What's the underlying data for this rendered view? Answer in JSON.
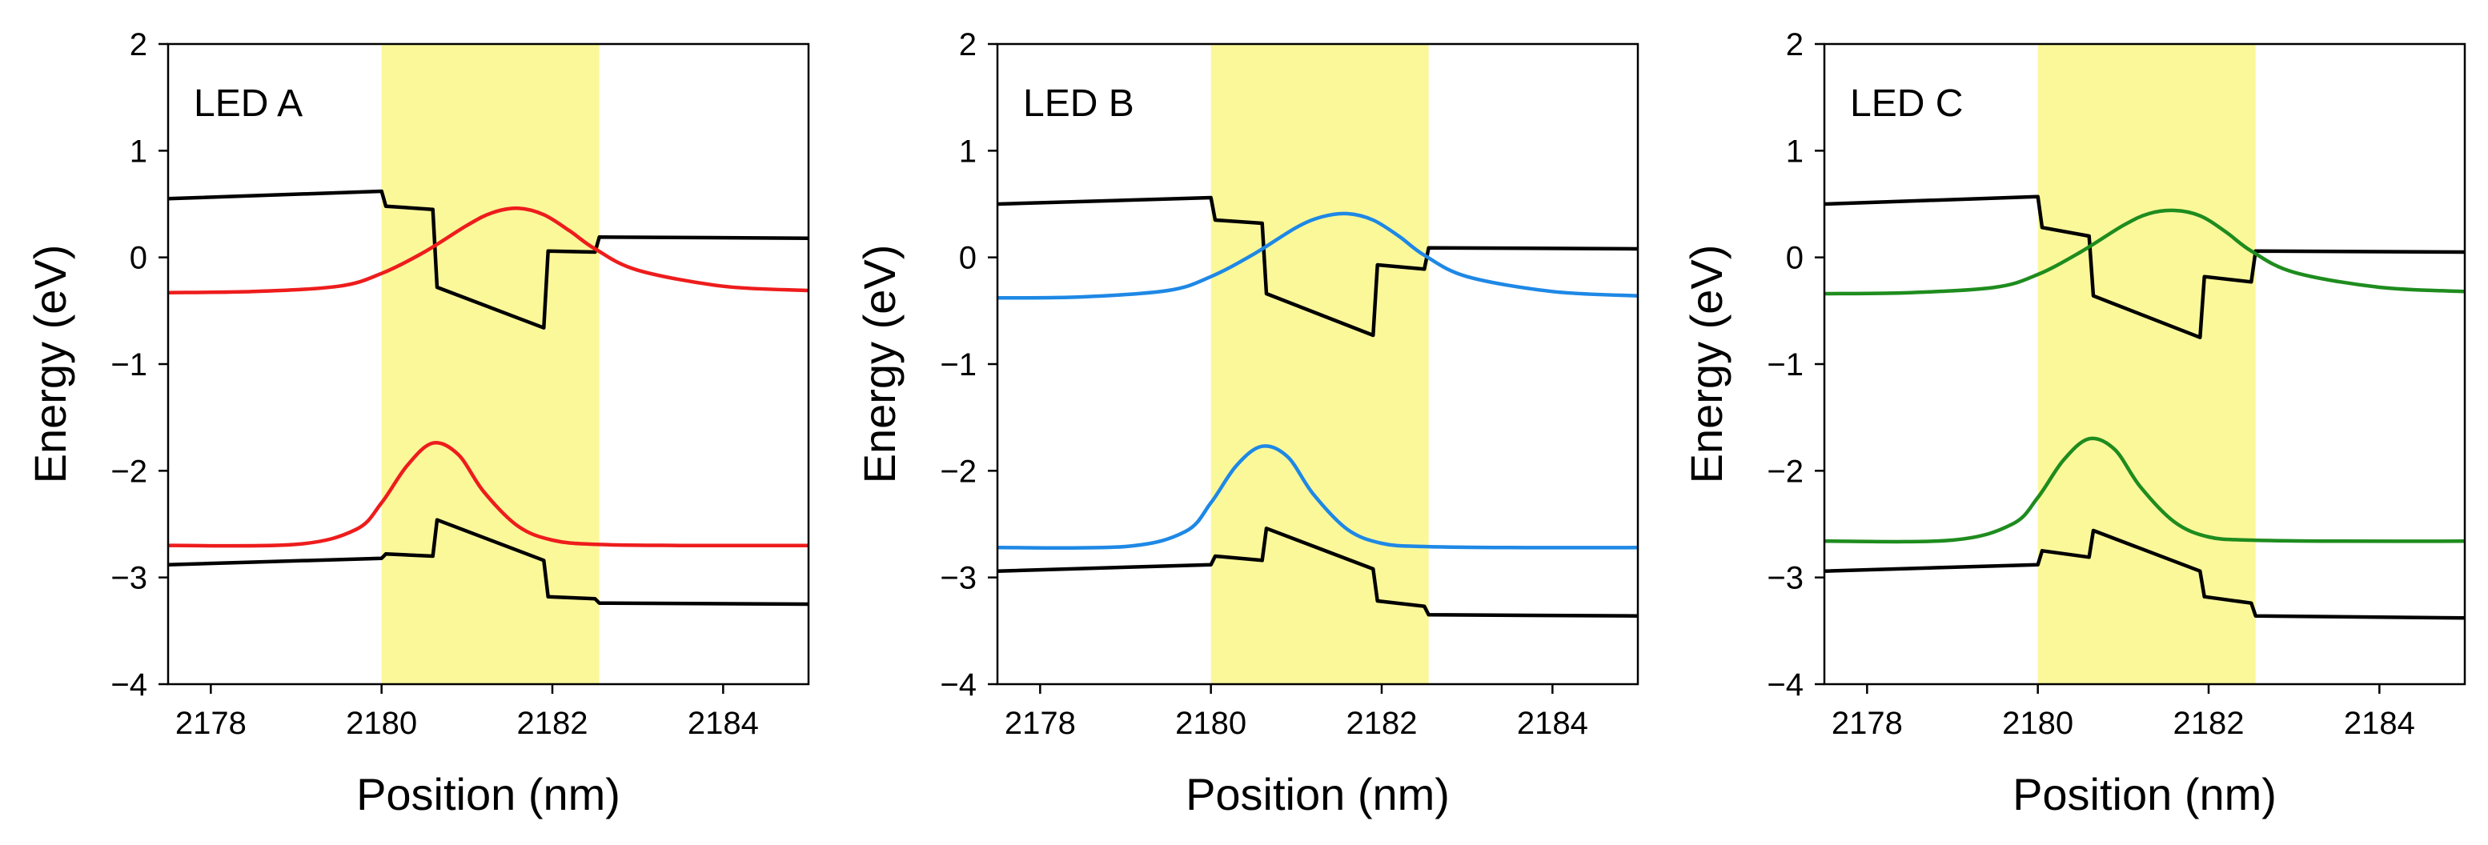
{
  "figure": {
    "colors": {
      "highlight": "#fbf89a",
      "band": "#000000",
      "frame": "#000000"
    }
  },
  "chart_data": [
    {
      "type": "line",
      "title": "LED A",
      "xlabel": "Position (nm)",
      "ylabel": "Energy (eV)",
      "xlim": [
        2177.5,
        2185
      ],
      "ylim": [
        -4,
        2
      ],
      "xticks": [
        2178,
        2180,
        2182,
        2184
      ],
      "yticks": [
        2,
        1,
        0,
        -1,
        -2,
        -3,
        -4
      ],
      "ytick_labels": [
        "2",
        "1",
        "0",
        "−1",
        "−2",
        "−3",
        "−4"
      ],
      "highlight_region": [
        2180,
        2182.55
      ],
      "wavefunction_color": "#ee1c1c",
      "series": [
        {
          "name": "conduction-band",
          "color": "#000000",
          "x": [
            2177.5,
            2180.0,
            2180.05,
            2180.6,
            2180.65,
            2181.9,
            2181.95,
            2182.5,
            2182.55,
            2185.0
          ],
          "y": [
            0.55,
            0.62,
            0.48,
            0.45,
            -0.28,
            -0.66,
            0.06,
            0.05,
            0.19,
            0.18
          ]
        },
        {
          "name": "valence-band",
          "color": "#000000",
          "x": [
            2177.5,
            2180.0,
            2180.05,
            2180.6,
            2180.65,
            2181.9,
            2181.95,
            2182.5,
            2182.55,
            2185.0
          ],
          "y": [
            -2.88,
            -2.82,
            -2.78,
            -2.8,
            -2.46,
            -2.84,
            -3.18,
            -3.2,
            -3.24,
            -3.25
          ]
        },
        {
          "name": "electron-wavefunction",
          "color": "#ee1c1c",
          "x": [
            2177.5,
            2178.5,
            2179.5,
            2180.0,
            2180.5,
            2181.0,
            2181.3,
            2181.6,
            2181.9,
            2182.2,
            2182.5,
            2183.0,
            2184.0,
            2185.0
          ],
          "y": [
            -0.33,
            -0.32,
            -0.27,
            -0.15,
            0.05,
            0.3,
            0.42,
            0.46,
            0.4,
            0.25,
            0.08,
            -0.12,
            -0.27,
            -0.31
          ]
        },
        {
          "name": "hole-wavefunction",
          "color": "#ee1c1c",
          "x": [
            2177.5,
            2179.0,
            2179.7,
            2180.0,
            2180.3,
            2180.6,
            2180.9,
            2181.2,
            2181.6,
            2182.0,
            2182.5,
            2183.5,
            2185.0
          ],
          "y": [
            -2.7,
            -2.69,
            -2.55,
            -2.3,
            -1.95,
            -1.74,
            -1.85,
            -2.2,
            -2.52,
            -2.65,
            -2.69,
            -2.7,
            -2.7
          ]
        }
      ]
    },
    {
      "type": "line",
      "title": "LED B",
      "xlabel": "Position (nm)",
      "ylabel": "Energy (eV)",
      "xlim": [
        2177.5,
        2185
      ],
      "ylim": [
        -4,
        2
      ],
      "xticks": [
        2178,
        2180,
        2182,
        2184
      ],
      "yticks": [
        2,
        1,
        0,
        -1,
        -2,
        -3,
        -4
      ],
      "ytick_labels": [
        "2",
        "1",
        "0",
        "−1",
        "−2",
        "−3",
        "−4"
      ],
      "highlight_region": [
        2180,
        2182.55
      ],
      "wavefunction_color": "#1e88e5",
      "series": [
        {
          "name": "conduction-band",
          "color": "#000000",
          "x": [
            2177.5,
            2180.0,
            2180.05,
            2180.6,
            2180.65,
            2181.9,
            2181.95,
            2182.5,
            2182.55,
            2185.0
          ],
          "y": [
            0.5,
            0.56,
            0.35,
            0.32,
            -0.34,
            -0.73,
            -0.07,
            -0.11,
            0.09,
            0.08
          ]
        },
        {
          "name": "valence-band",
          "color": "#000000",
          "x": [
            2177.5,
            2180.0,
            2180.05,
            2180.6,
            2180.65,
            2181.9,
            2181.95,
            2182.5,
            2182.55,
            2185.0
          ],
          "y": [
            -2.94,
            -2.88,
            -2.8,
            -2.84,
            -2.54,
            -2.92,
            -3.22,
            -3.27,
            -3.35,
            -3.36
          ]
        },
        {
          "name": "electron-wavefunction",
          "color": "#1e88e5",
          "x": [
            2177.5,
            2178.5,
            2179.5,
            2180.0,
            2180.5,
            2181.0,
            2181.3,
            2181.6,
            2181.9,
            2182.2,
            2182.5,
            2183.0,
            2184.0,
            2185.0
          ],
          "y": [
            -0.38,
            -0.37,
            -0.31,
            -0.18,
            0.03,
            0.28,
            0.38,
            0.41,
            0.35,
            0.2,
            0.02,
            -0.18,
            -0.32,
            -0.36
          ]
        },
        {
          "name": "hole-wavefunction",
          "color": "#1e88e5",
          "x": [
            2177.5,
            2179.0,
            2179.7,
            2180.0,
            2180.3,
            2180.6,
            2180.9,
            2181.2,
            2181.6,
            2182.0,
            2182.5,
            2183.5,
            2185.0
          ],
          "y": [
            -2.72,
            -2.71,
            -2.57,
            -2.3,
            -1.95,
            -1.77,
            -1.87,
            -2.22,
            -2.55,
            -2.68,
            -2.71,
            -2.72,
            -2.72
          ]
        }
      ]
    },
    {
      "type": "line",
      "title": "LED C",
      "xlabel": "Position (nm)",
      "ylabel": "Energy (eV)",
      "xlim": [
        2177.5,
        2185
      ],
      "ylim": [
        -4,
        2
      ],
      "xticks": [
        2178,
        2180,
        2182,
        2184
      ],
      "yticks": [
        2,
        1,
        0,
        -1,
        -2,
        -3,
        -4
      ],
      "ytick_labels": [
        "2",
        "1",
        "0",
        "−1",
        "−2",
        "−3",
        "−4"
      ],
      "highlight_region": [
        2180,
        2182.55
      ],
      "wavefunction_color": "#1e8c1e",
      "series": [
        {
          "name": "conduction-band",
          "color": "#000000",
          "x": [
            2177.5,
            2180.0,
            2180.05,
            2180.6,
            2180.65,
            2181.9,
            2181.95,
            2182.5,
            2182.55,
            2185.0
          ],
          "y": [
            0.5,
            0.57,
            0.28,
            0.2,
            -0.36,
            -0.75,
            -0.18,
            -0.23,
            0.06,
            0.05
          ]
        },
        {
          "name": "valence-band",
          "color": "#000000",
          "x": [
            2177.5,
            2180.0,
            2180.05,
            2180.6,
            2180.65,
            2181.9,
            2181.95,
            2182.5,
            2182.55,
            2185.0
          ],
          "y": [
            -2.94,
            -2.88,
            -2.75,
            -2.81,
            -2.56,
            -2.94,
            -3.18,
            -3.24,
            -3.36,
            -3.38
          ]
        },
        {
          "name": "electron-wavefunction",
          "color": "#1e8c1e",
          "x": [
            2177.5,
            2178.5,
            2179.5,
            2180.0,
            2180.5,
            2181.0,
            2181.3,
            2181.6,
            2181.9,
            2182.2,
            2182.5,
            2183.0,
            2184.0,
            2185.0
          ],
          "y": [
            -0.34,
            -0.33,
            -0.28,
            -0.16,
            0.05,
            0.3,
            0.41,
            0.44,
            0.39,
            0.24,
            0.06,
            -0.14,
            -0.28,
            -0.32
          ]
        },
        {
          "name": "hole-wavefunction",
          "color": "#1e8c1e",
          "x": [
            2177.5,
            2179.0,
            2179.7,
            2180.0,
            2180.3,
            2180.6,
            2180.9,
            2181.2,
            2181.6,
            2182.0,
            2182.5,
            2183.5,
            2185.0
          ],
          "y": [
            -2.66,
            -2.65,
            -2.5,
            -2.25,
            -1.9,
            -1.7,
            -1.8,
            -2.15,
            -2.48,
            -2.62,
            -2.65,
            -2.66,
            -2.66
          ]
        }
      ]
    }
  ]
}
